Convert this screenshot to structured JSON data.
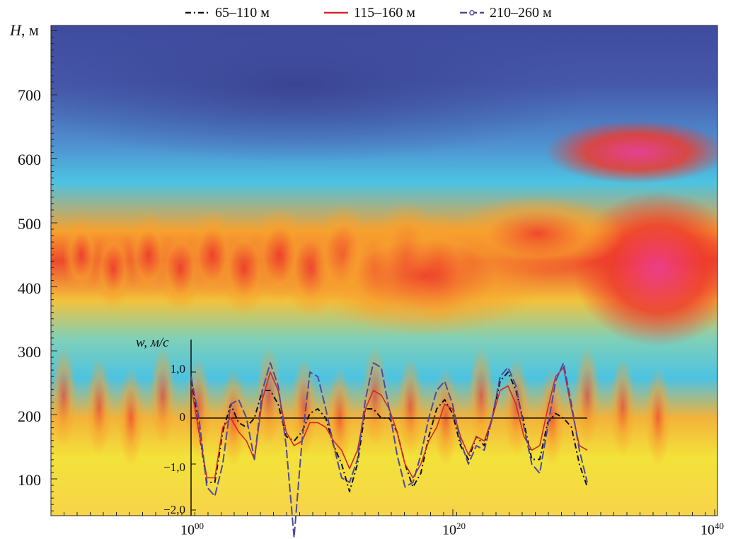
{
  "colors": {
    "series_65_110": "#111111",
    "series_115_160": "#d62728",
    "series_210_260": "#4e4a9c",
    "background_low": "#3f4b9e",
    "background_high": "#ec3c8f"
  },
  "legend": [
    {
      "label": "65–110 м",
      "color": "#111111",
      "style": "dash-dot"
    },
    {
      "label": "115–160 м",
      "color": "#d62728",
      "style": "solid"
    },
    {
      "label": "210–260 м",
      "color": "#4e4a9c",
      "style": "dash-circle"
    }
  ],
  "axes": {
    "y_label_var": "H",
    "y_label_unit": ", м",
    "y_ticks": [
      "700",
      "600",
      "500",
      "400",
      "300",
      "200",
      "100"
    ],
    "x_ticks": [
      {
        "base": "10",
        "exp": "00"
      },
      {
        "base": "10",
        "exp": "20"
      },
      {
        "base": "10",
        "exp": "40"
      }
    ]
  },
  "inset": {
    "y_label": "w, м/с",
    "y_ticks": [
      "1,0",
      "0",
      "−1,0",
      "−2,0"
    ]
  },
  "chart_data": [
    {
      "type": "heatmap",
      "description_axes": "time (horizontal) vs height H (vertical)",
      "y_range": [
        40,
        810
      ],
      "x_ticks": [
        "10^00",
        "10^20",
        "10^40"
      ],
      "ylabel": "H, м",
      "yticks": [
        700,
        600,
        500,
        400,
        300,
        200,
        100
      ],
      "colormap": [
        "#3f4b9e",
        "#4f66b8",
        "#4cb6e0",
        "#6fd0c8",
        "#9fd07a",
        "#f3e23a",
        "#f7a12e",
        "#ee3a2c",
        "#ec3c8f"
      ]
    },
    {
      "type": "line",
      "ylabel": "w, м/с",
      "ylim": [
        -2.0,
        1.5
      ],
      "yticks": [
        1.0,
        0,
        -1.0,
        -2.0
      ],
      "x": [
        0,
        0.02,
        0.04,
        0.06,
        0.08,
        0.1,
        0.12,
        0.14,
        0.16,
        0.18,
        0.2,
        0.22,
        0.24,
        0.26,
        0.28,
        0.3,
        0.32,
        0.34,
        0.36,
        0.38,
        0.4,
        0.42,
        0.44,
        0.46,
        0.48,
        0.5,
        0.52,
        0.54,
        0.56,
        0.58,
        0.6,
        0.62,
        0.64,
        0.66,
        0.68,
        0.7,
        0.72,
        0.74,
        0.76,
        0.78,
        0.8,
        0.82,
        0.84,
        0.86,
        0.88,
        0.9,
        0.92,
        0.94,
        0.96,
        0.98,
        1.0
      ],
      "series": [
        {
          "name": "65–110 м",
          "values": [
            0.9,
            -0.3,
            -1.4,
            -1.4,
            -0.3,
            0.3,
            -0.1,
            -0.2,
            0.0,
            0.6,
            0.6,
            0.3,
            -0.4,
            -0.5,
            -0.3,
            0.1,
            0.2,
            0.0,
            -0.6,
            -1.0,
            -1.6,
            -1.0,
            0.2,
            0.2,
            0.0,
            0.0,
            -0.3,
            -1.0,
            -1.5,
            -1.2,
            -0.4,
            0.2,
            0.4,
            0.1,
            -0.6,
            -0.9,
            -0.4,
            -0.6,
            0.0,
            0.8,
            1.0,
            0.6,
            -0.1,
            -0.9,
            -0.9,
            -0.1,
            0.1,
            0.0,
            -0.2,
            -1.0,
            -1.5
          ]
        },
        {
          "name": "115–160 м",
          "values": [
            0.7,
            -0.3,
            -1.3,
            -1.3,
            -0.2,
            0.0,
            -0.3,
            -0.5,
            -0.9,
            0.4,
            1.0,
            0.6,
            -0.3,
            -0.6,
            -0.5,
            -0.1,
            -0.1,
            -0.2,
            -0.5,
            -0.7,
            -1.1,
            -0.7,
            0.2,
            0.6,
            0.5,
            0.2,
            -0.3,
            -1.0,
            -1.3,
            -1.0,
            -0.5,
            -0.2,
            0.3,
            0.2,
            -0.4,
            -0.8,
            -0.4,
            -0.5,
            0.0,
            0.6,
            0.7,
            0.3,
            -0.4,
            -0.7,
            -0.6,
            0.2,
            0.9,
            1.1,
            0.2,
            -0.6,
            -0.7
          ]
        },
        {
          "name": "210–260 м",
          "values": [
            0.9,
            0.0,
            -1.5,
            -1.7,
            -1.0,
            0.3,
            0.4,
            0.0,
            -0.9,
            0.6,
            1.2,
            0.7,
            -0.6,
            -2.6,
            -0.5,
            1.0,
            0.9,
            0.2,
            -0.6,
            -1.3,
            -1.4,
            -0.9,
            0.4,
            1.2,
            1.1,
            0.2,
            -0.8,
            -1.5,
            -1.4,
            -0.8,
            0.0,
            0.6,
            0.8,
            0.3,
            -0.5,
            -1.0,
            -0.6,
            -0.7,
            0.0,
            0.9,
            1.1,
            0.7,
            -0.2,
            -1.0,
            -1.2,
            -0.2,
            0.8,
            1.2,
            0.3,
            -0.7,
            -1.4
          ]
        }
      ]
    }
  ]
}
